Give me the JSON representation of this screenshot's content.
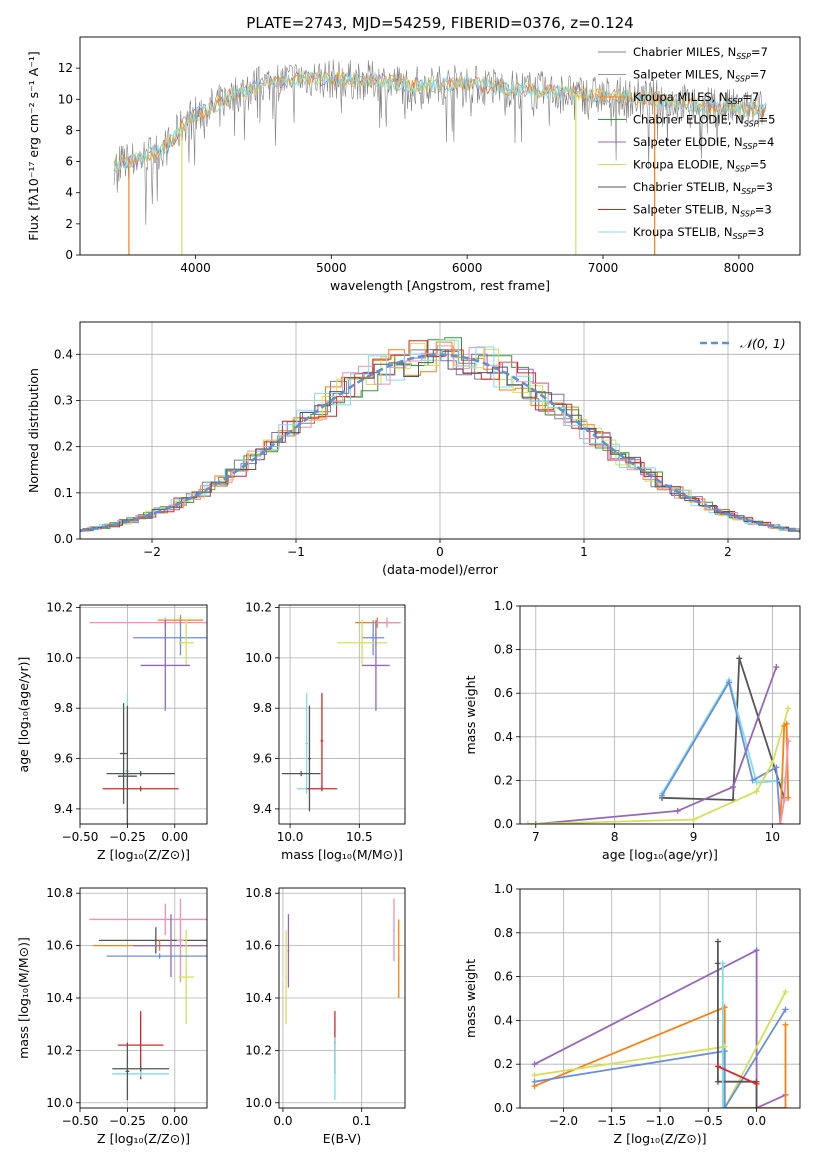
{
  "title": "PLATE=2743, MJD=54259, FIBERID=0376, z=0.124",
  "colors": {
    "Chabrier MILES": "#808080",
    "Salpeter MILES": "#999999",
    "Kroupa MILES": "#ff7f0e",
    "Chabrier ELODIE": "#2ca02c",
    "Salpeter ELODIE": "#9467bd",
    "Kroupa ELODIE": "#d4e157",
    "Chabrier STELIB": "#555555",
    "Salpeter STELIB": "#d62728",
    "Kroupa STELIB": "#80deea",
    "normal": "#5b8fd6",
    "pink": "#f48fb1",
    "blue": "#6b8fdc"
  },
  "chart_data": [
    {
      "id": "spectrum",
      "type": "line",
      "title": "PLATE=2743, MJD=54259, FIBERID=0376, z=0.124",
      "xlabel": "wavelength [Angstrom, rest frame]",
      "ylabel": "Flux [fλ10⁻¹⁷ erg cm⁻² s⁻¹ A⁻¹]",
      "xlim": [
        3150,
        8450
      ],
      "ylim": [
        0,
        14
      ],
      "xticks": [
        4000,
        5000,
        6000,
        7000,
        8000
      ],
      "yticks": [
        0,
        2,
        4,
        6,
        8,
        10,
        12
      ],
      "legend_position": "top-right",
      "legend": [
        "Chabrier MILES, N_SSP=7",
        "Salpeter MILES, N_SSP=7",
        "Kroupa MILES, N_SSP=7",
        "Chabrier ELODIE, N_SSP=5",
        "Salpeter ELODIE, N_SSP=4",
        "Kroupa ELODIE, N_SSP=5",
        "Chabrier STELIB, N_SSP=3",
        "Salpeter STELIB, N_SSP=3",
        "Kroupa STELIB, N_SSP=3"
      ],
      "continuum": [
        [
          3400,
          5.8
        ],
        [
          3600,
          6.2
        ],
        [
          3800,
          7.0
        ],
        [
          3950,
          8.8
        ],
        [
          4100,
          9.4
        ],
        [
          4300,
          10.4
        ],
        [
          4500,
          11.0
        ],
        [
          4800,
          11.4
        ],
        [
          5000,
          11.3
        ],
        [
          5300,
          11.2
        ],
        [
          5600,
          10.9
        ],
        [
          6000,
          11.0
        ],
        [
          6300,
          10.7
        ],
        [
          6600,
          10.5
        ],
        [
          7000,
          10.2
        ],
        [
          7400,
          10.0
        ],
        [
          7800,
          9.5
        ],
        [
          8200,
          9.3
        ]
      ],
      "dips": [
        [
          3510,
          0
        ],
        [
          3900,
          0
        ],
        [
          6800,
          0
        ],
        [
          7380,
          0
        ]
      ]
    },
    {
      "id": "residuals",
      "type": "histogram",
      "xlabel": "(data-model)/error",
      "ylabel": "Normed distribution",
      "xlim": [
        -2.5,
        2.5
      ],
      "ylim": [
        0,
        0.47
      ],
      "xticks": [
        -2,
        -1,
        0,
        1,
        2
      ],
      "yticks": [
        0.0,
        0.1,
        0.2,
        0.3,
        0.4
      ],
      "legend_position": "top-right",
      "legend": [
        "𝒩(0, 1)"
      ]
    },
    {
      "id": "age-vs-z",
      "type": "scatter",
      "xlabel": "Z [log₁₀(Z/Z⊙)]",
      "ylabel": "age  [log₁₀(age/yr)]",
      "xlim": [
        -0.5,
        0.17
      ],
      "ylim": [
        9.34,
        10.21
      ],
      "xticks": [
        -0.5,
        -0.25,
        0.0
      ],
      "yticks": [
        9.4,
        9.6,
        9.8,
        10.0,
        10.2
      ],
      "xtick_labels": [
        "−0.50",
        "−0.25",
        "0.00"
      ],
      "ytick_labels": [
        "9.4",
        "9.6",
        "9.8",
        "10.0",
        "10.2"
      ],
      "points": [
        {
          "x": 0.03,
          "xerr": 0.12,
          "y": 10.15,
          "yerr": 0.02,
          "c": "#ff7f0e"
        },
        {
          "x": -0.05,
          "xerr": 0.4,
          "y": 10.14,
          "yerr": 0.02,
          "c": "#f48fb1"
        },
        {
          "x": 0.03,
          "xerr": 0.25,
          "y": 10.08,
          "yerr": 0.07,
          "c": "#6b8fdc"
        },
        {
          "x": 0.06,
          "xerr": 0.04,
          "y": 10.06,
          "yerr": 0.09,
          "c": "#d4e157"
        },
        {
          "x": -0.05,
          "xerr": 0.13,
          "y": 9.97,
          "yerr": 0.18,
          "c": "#9467bd"
        },
        {
          "x": -0.25,
          "xerr": 0.01,
          "y": 9.55,
          "yerr": 0.31,
          "c": "#80deea"
        },
        {
          "x": -0.25,
          "xerr": 0.05,
          "y": 9.53,
          "yerr": 0.28,
          "c": "#555555"
        },
        {
          "x": -0.27,
          "xerr": 0.02,
          "y": 9.62,
          "yerr": 0.2,
          "c": "#555555"
        },
        {
          "x": -0.18,
          "xerr": 0.18,
          "y": 9.54,
          "yerr": 0.01,
          "c": "#555555"
        },
        {
          "x": -0.18,
          "xerr": 0.2,
          "y": 9.48,
          "yerr": 0.01,
          "c": "#d62728"
        }
      ]
    },
    {
      "id": "age-vs-mass",
      "type": "scatter",
      "xlabel": "mass [log₁₀(M/M⊙)]",
      "ylabel": "",
      "xlim": [
        9.92,
        10.83
      ],
      "ylim": [
        9.34,
        10.21
      ],
      "xticks": [
        10.0,
        10.5
      ],
      "yticks": [
        9.4,
        9.6,
        9.8,
        10.0,
        10.2
      ],
      "xtick_labels": [
        "10.0",
        "10.5"
      ],
      "ytick_labels": [
        "9.4",
        "9.6",
        "9.8",
        "10.0",
        "10.2"
      ],
      "points": [
        {
          "x": 10.63,
          "xerr": 0.16,
          "y": 10.14,
          "yerr": 0.02,
          "c": "#ff7f0e"
        },
        {
          "x": 10.7,
          "xerr": 0.1,
          "y": 10.14,
          "yerr": 0.02,
          "c": "#f48fb1"
        },
        {
          "x": 10.6,
          "xerr": 0.08,
          "y": 10.08,
          "yerr": 0.07,
          "c": "#6b8fdc"
        },
        {
          "x": 10.52,
          "xerr": 0.18,
          "y": 10.06,
          "yerr": 0.09,
          "c": "#d4e157"
        },
        {
          "x": 10.62,
          "xerr": 0.1,
          "y": 9.97,
          "yerr": 0.18,
          "c": "#9467bd"
        },
        {
          "x": 10.12,
          "xerr": 0.07,
          "y": 9.48,
          "yerr": 0.01,
          "c": "#80deea"
        },
        {
          "x": 10.12,
          "xerr": 0.01,
          "y": 9.66,
          "yerr": 0.2,
          "c": "#80deea"
        },
        {
          "x": 10.14,
          "xerr": 0.01,
          "y": 9.6,
          "yerr": 0.21,
          "c": "#555555"
        },
        {
          "x": 10.08,
          "xerr": 0.14,
          "y": 9.54,
          "yerr": 0.01,
          "c": "#555555"
        },
        {
          "x": 10.23,
          "xerr": 0.11,
          "y": 9.48,
          "yerr": 0.01,
          "c": "#d62728"
        },
        {
          "x": 10.23,
          "xerr": 0.01,
          "y": 9.67,
          "yerr": 0.19,
          "c": "#d62728"
        }
      ]
    },
    {
      "id": "weight-vs-age",
      "type": "line",
      "xlabel": "age  [log₁₀(age/yr)]",
      "ylabel": "mass weight",
      "xlim": [
        6.8,
        10.35
      ],
      "ylim": [
        0,
        1.0
      ],
      "xticks": [
        7,
        8,
        9,
        10
      ],
      "yticks": [
        0.0,
        0.2,
        0.4,
        0.6,
        0.8,
        1.0
      ],
      "xtick_labels": [
        "7",
        "8",
        "9",
        "10"
      ],
      "ytick_labels": [
        "0.0",
        "0.2",
        "0.4",
        "0.6",
        "0.8",
        "1.0"
      ],
      "series": [
        {
          "c": "#555555",
          "x": [
            8.6,
            9.5,
            9.58,
            10.15
          ],
          "y": [
            0.12,
            0.11,
            0.76,
            0.12
          ]
        },
        {
          "c": "#80deea",
          "x": [
            8.6,
            9.45,
            9.8,
            10.15
          ],
          "y": [
            0.14,
            0.66,
            0.19,
            0.2
          ]
        },
        {
          "c": "#6b8fdc",
          "x": [
            8.6,
            9.45,
            9.75,
            10.05,
            10.1
          ],
          "y": [
            0.13,
            0.65,
            0.2,
            0.26,
            0.0
          ]
        },
        {
          "c": "#9467bd",
          "x": [
            7.0,
            8.8,
            9.5,
            10.05
          ],
          "y": [
            0.0,
            0.06,
            0.17,
            0.72
          ]
        },
        {
          "c": "#d4e157",
          "x": [
            6.9,
            9.0,
            9.8,
            10.0,
            10.2
          ],
          "y": [
            0.0,
            0.02,
            0.15,
            0.28,
            0.53
          ]
        },
        {
          "c": "#ff7f0e",
          "x": [
            10.1,
            10.15,
            10.18,
            10.2
          ],
          "y": [
            0.0,
            0.45,
            0.46,
            0.12
          ]
        },
        {
          "c": "#f48fb1",
          "x": [
            10.1,
            10.15,
            10.2
          ],
          "y": [
            0.0,
            0.11,
            0.38
          ]
        }
      ]
    },
    {
      "id": "mass-vs-z",
      "type": "scatter",
      "xlabel": "Z [log₁₀(Z/Z⊙)]",
      "ylabel": "mass [log₁₀(M/M⊙)]",
      "xlim": [
        -0.5,
        0.17
      ],
      "ylim": [
        9.98,
        10.82
      ],
      "xticks": [
        -0.5,
        -0.25,
        0.0
      ],
      "yticks": [
        10.0,
        10.2,
        10.4,
        10.6,
        10.8
      ],
      "xtick_labels": [
        "−0.50",
        "−0.25",
        "0.00"
      ],
      "ytick_labels": [
        "10.0",
        "10.2",
        "10.4",
        "10.6",
        "10.8"
      ],
      "points": [
        {
          "x": -0.05,
          "xerr": 0.4,
          "y": 10.7,
          "yerr": 0.06,
          "c": "#f48fb1"
        },
        {
          "x": -0.1,
          "xerr": 0.3,
          "y": 10.62,
          "yerr": 0.05,
          "c": "#555555"
        },
        {
          "x": -0.08,
          "xerr": 0.35,
          "y": 10.6,
          "yerr": 0.02,
          "c": "#ff7f0e"
        },
        {
          "x": -0.02,
          "xerr": 0.2,
          "y": 10.6,
          "yerr": 0.12,
          "c": "#9467bd"
        },
        {
          "x": 0.03,
          "xerr": 0.02,
          "y": 10.62,
          "yerr": 0.16,
          "c": "#f48fb1"
        },
        {
          "x": 0.06,
          "xerr": 0.04,
          "y": 10.48,
          "yerr": 0.18,
          "c": "#d4e157"
        },
        {
          "x": -0.08,
          "xerr": 0.28,
          "y": 10.56,
          "yerr": 0.01,
          "c": "#6b8fdc"
        },
        {
          "x": -0.18,
          "xerr": 0.12,
          "y": 10.22,
          "yerr": 0.13,
          "c": "#d62728"
        },
        {
          "x": -0.18,
          "xerr": 0.15,
          "y": 10.13,
          "yerr": 0.01,
          "c": "#555555"
        },
        {
          "x": -0.18,
          "xerr": 0.15,
          "y": 10.11,
          "yerr": 0.01,
          "c": "#80deea"
        },
        {
          "x": -0.25,
          "xerr": 0.01,
          "y": 10.12,
          "yerr": 0.11,
          "c": "#555555"
        }
      ]
    },
    {
      "id": "mass-vs-ebv",
      "type": "scatter",
      "xlabel": "E(B-V)",
      "ylabel": "",
      "xlim": [
        -0.005,
        0.155
      ],
      "ylim": [
        9.98,
        10.82
      ],
      "xticks": [
        0.0,
        0.1
      ],
      "yticks": [
        10.0,
        10.2,
        10.4,
        10.6,
        10.8
      ],
      "xtick_labels": [
        "0.0",
        "0.1"
      ],
      "ytick_labels": [
        "10.0",
        "10.2",
        "10.4",
        "10.6",
        "10.8"
      ],
      "points": [
        {
          "x": 0.004,
          "xerr": 0.001,
          "y": 10.48,
          "yerr": 0.18,
          "c": "#d4e157"
        },
        {
          "x": 0.007,
          "xerr": 0.001,
          "y": 10.58,
          "yerr": 0.14,
          "c": "#9467bd"
        },
        {
          "x": 0.066,
          "xerr": 0.001,
          "y": 10.23,
          "yerr": 0.12,
          "c": "#d62728"
        },
        {
          "x": 0.066,
          "xerr": 0.001,
          "y": 10.13,
          "yerr": 0.12,
          "c": "#80deea"
        },
        {
          "x": 0.141,
          "xerr": 0.001,
          "y": 10.66,
          "yerr": 0.12,
          "c": "#f48fb1"
        },
        {
          "x": 0.147,
          "xerr": 0.001,
          "y": 10.55,
          "yerr": 0.15,
          "c": "#ff7f0e"
        }
      ]
    },
    {
      "id": "weight-vs-z",
      "type": "line",
      "xlabel": "Z [log₁₀(Z/Z⊙)]",
      "ylabel": "mass weight",
      "xlim": [
        -2.45,
        0.45
      ],
      "ylim": [
        0,
        1.0
      ],
      "xticks": [
        -2.0,
        -1.5,
        -1.0,
        -0.5,
        0.0
      ],
      "yticks": [
        0.0,
        0.2,
        0.4,
        0.6,
        0.8,
        1.0
      ],
      "xtick_labels": [
        "−2.0",
        "−1.5",
        "−1.0",
        "−0.5",
        "0.0"
      ],
      "ytick_labels": [
        "0.0",
        "0.2",
        "0.4",
        "0.6",
        "0.8",
        "1.0"
      ],
      "series": [
        {
          "c": "#9467bd",
          "x": [
            -2.3,
            0.0,
            0.0,
            0.3
          ],
          "y": [
            0.2,
            0.72,
            0.0,
            0.06
          ]
        },
        {
          "c": "#ff7f0e",
          "x": [
            -2.3,
            -0.33,
            -0.33,
            0.3,
            0.3
          ],
          "y": [
            0.1,
            0.46,
            0.0,
            0.0,
            0.38
          ]
        },
        {
          "c": "#d4e157",
          "x": [
            -2.3,
            -0.33,
            -0.33,
            0.3
          ],
          "y": [
            0.15,
            0.28,
            0.0,
            0.53
          ]
        },
        {
          "c": "#6b8fdc",
          "x": [
            -2.3,
            -0.33,
            -0.33,
            0.3
          ],
          "y": [
            0.12,
            0.26,
            0.0,
            0.45
          ]
        },
        {
          "c": "#555555",
          "x": [
            -0.4,
            -0.4,
            -0.4,
            0.0,
            0.0
          ],
          "y": [
            0.66,
            0.76,
            0.12,
            0.12,
            0.0
          ]
        },
        {
          "c": "#80deea",
          "x": [
            -0.35,
            -0.35
          ],
          "y": [
            0.0,
            0.66
          ]
        },
        {
          "c": "#d62728",
          "x": [
            -0.4,
            0.0
          ],
          "y": [
            0.19,
            0.11
          ]
        }
      ]
    }
  ]
}
